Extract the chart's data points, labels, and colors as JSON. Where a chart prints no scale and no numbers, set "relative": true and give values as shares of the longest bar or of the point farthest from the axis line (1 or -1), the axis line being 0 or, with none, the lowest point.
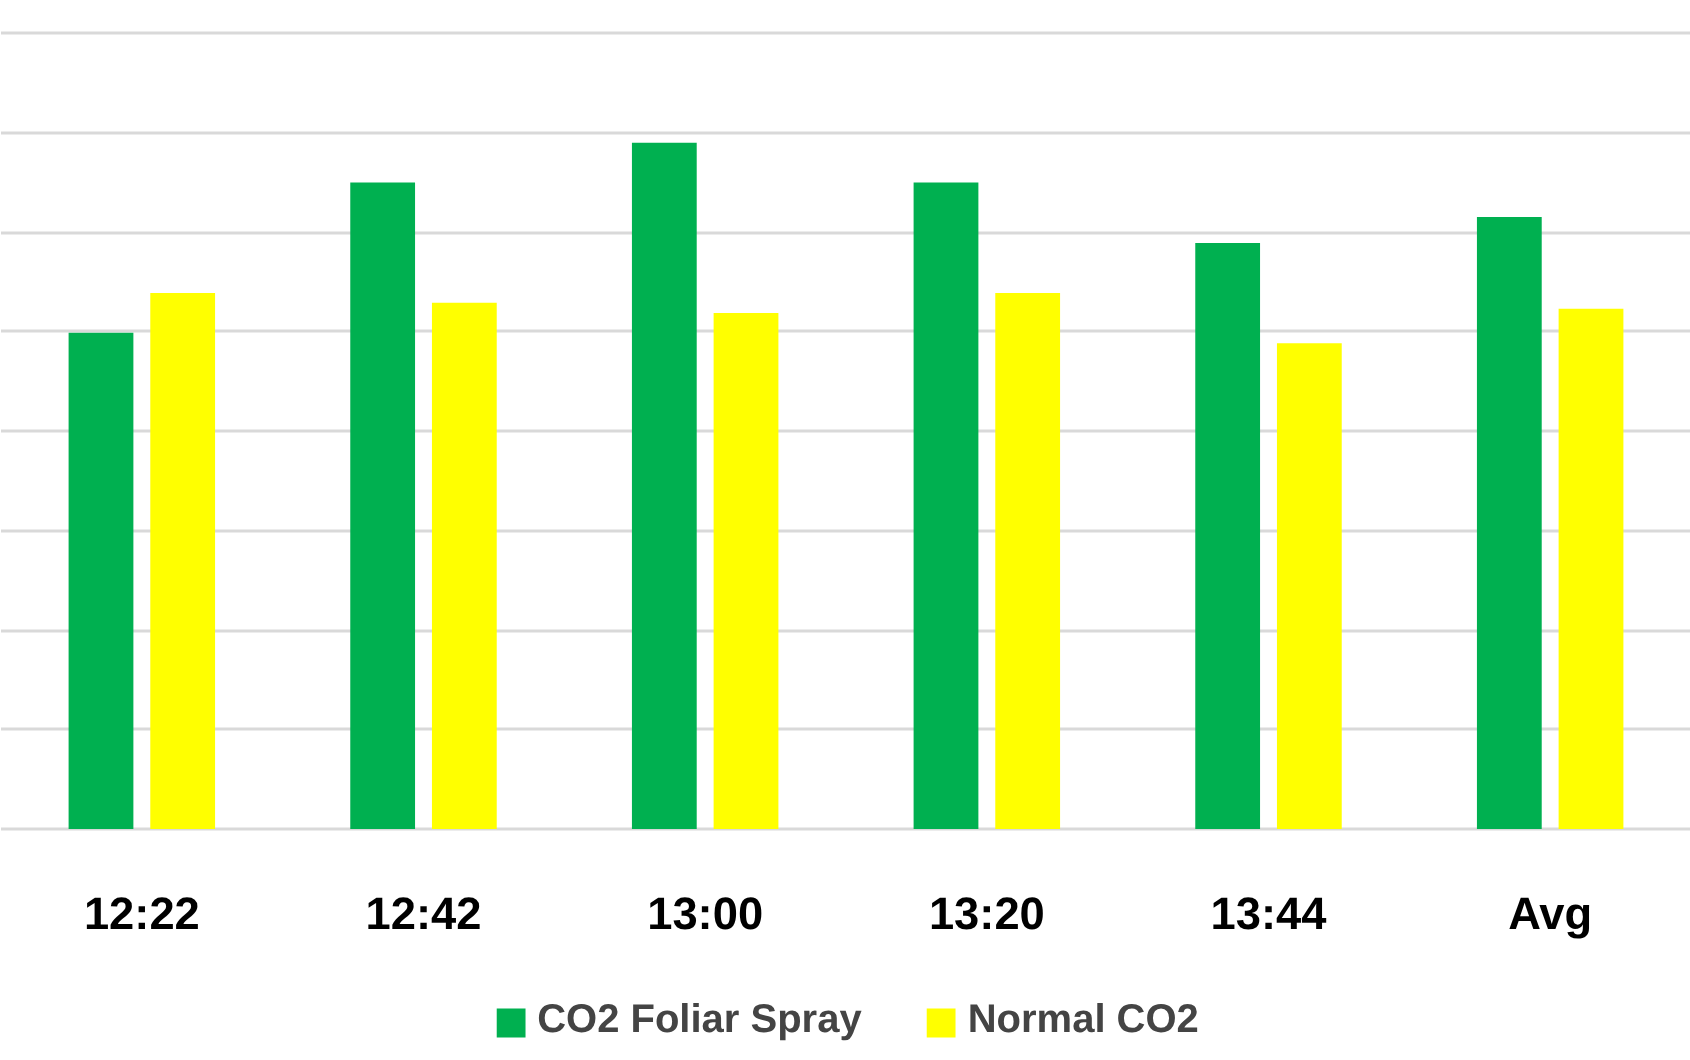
{
  "chart_data": {
    "type": "bar",
    "relative": true,
    "categories": [
      "12:22",
      "12:42",
      "13:00",
      "13:20",
      "13:44",
      "Avg"
    ],
    "series": [
      {
        "name": "CO2 Foliar Spray",
        "color": "#00b050",
        "values": [
          0.723,
          0.942,
          1,
          0.942,
          0.854,
          0.892
        ]
      },
      {
        "name": "Normal CO2",
        "color": "#ffff00",
        "values": [
          0.781,
          0.767,
          0.752,
          0.781,
          0.708,
          0.758
        ]
      }
    ],
    "grid": "y",
    "legend": "bottom"
  }
}
